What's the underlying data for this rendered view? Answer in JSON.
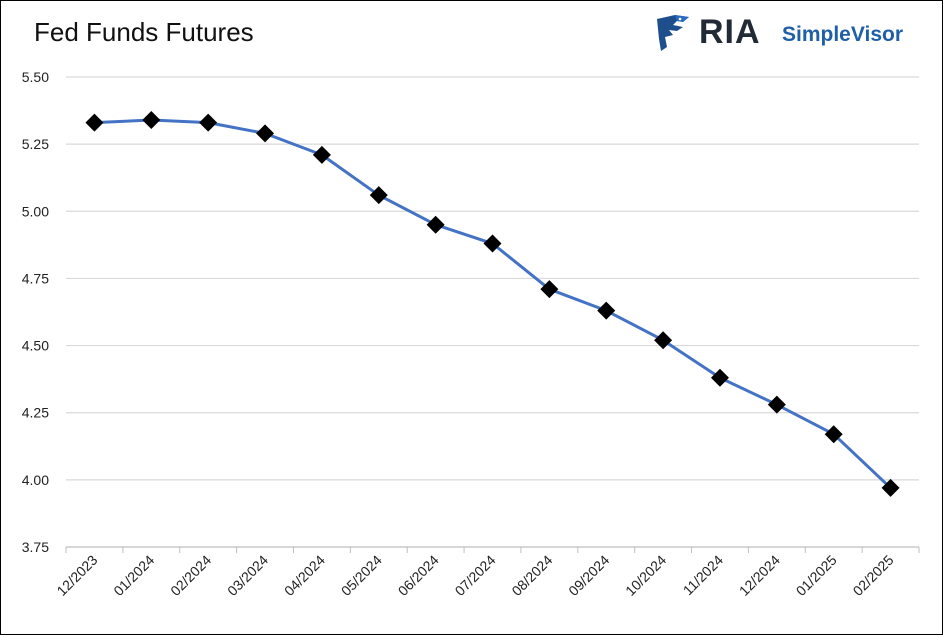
{
  "chart_data": {
    "type": "line",
    "title": "Fed Funds Futures",
    "xlabel": "",
    "ylabel": "",
    "categories": [
      "12/2023",
      "01/2024",
      "02/2024",
      "03/2024",
      "04/2024",
      "05/2024",
      "06/2024",
      "07/2024",
      "08/2024",
      "09/2024",
      "10/2024",
      "11/2024",
      "12/2024",
      "01/2025",
      "02/2025"
    ],
    "series": [
      {
        "values": [
          5.33,
          5.34,
          5.33,
          5.29,
          5.21,
          5.06,
          4.95,
          4.88,
          4.71,
          4.63,
          4.52,
          4.38,
          4.28,
          4.17,
          3.97
        ]
      }
    ],
    "ylim": [
      3.75,
      5.5
    ],
    "yticks": [
      "3.75",
      "4.00",
      "4.25",
      "4.50",
      "4.75",
      "5.00",
      "5.25",
      "5.50"
    ],
    "grid": true,
    "line_color": "#4472c4",
    "marker_color": "#000000",
    "marker": "diamond"
  },
  "logo": {
    "brand": "RIA",
    "product": "SimpleVisor",
    "icon": "eagle-icon",
    "brand_color": "#222a35",
    "product_color": "#1f5fa8"
  }
}
